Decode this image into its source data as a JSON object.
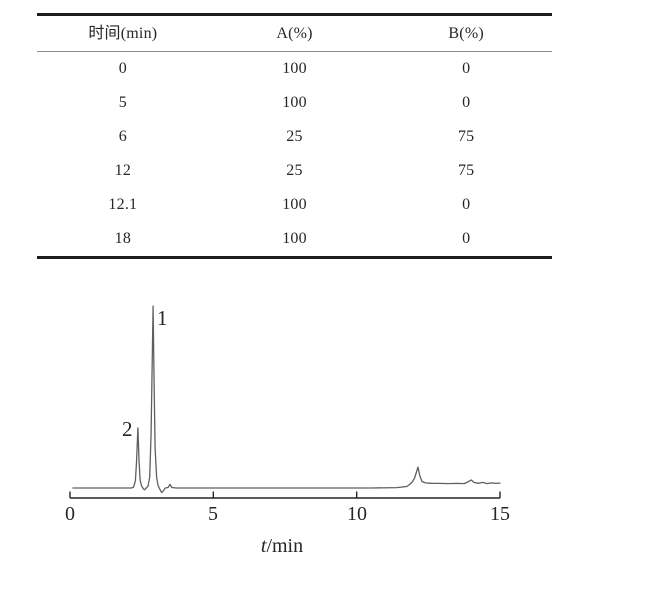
{
  "table": {
    "headers": [
      "时间(min)",
      "A(%)",
      "B(%)"
    ],
    "rows": [
      [
        "0",
        "100",
        "0"
      ],
      [
        "5",
        "100",
        "0"
      ],
      [
        "6",
        "25",
        "75"
      ],
      [
        "12",
        "25",
        "75"
      ],
      [
        "12.1",
        "100",
        "0"
      ],
      [
        "18",
        "100",
        "0"
      ]
    ]
  },
  "chart": {
    "xlabel_t": "t",
    "xlabel_unit": "/min",
    "peak_labels": [
      {
        "text": "1"
      },
      {
        "text": "2"
      }
    ]
  },
  "chart_data": {
    "type": "line",
    "title": "",
    "xlabel": "t/min",
    "ylabel": "",
    "xlim": [
      0,
      15
    ],
    "x_ticks": [
      0,
      5,
      10,
      15
    ],
    "x_tick_labels": [
      "0",
      "5",
      "10",
      "15"
    ],
    "grid": false,
    "legend": "none",
    "annotations": [
      {
        "text": "1",
        "t": 2.9,
        "height_rel": 100
      },
      {
        "text": "2",
        "t": 2.37,
        "height_rel": 33
      }
    ],
    "series": [
      {
        "name": "chromatogram-trace",
        "points": [
          [
            0.1,
            0
          ],
          [
            1.0,
            0
          ],
          [
            1.8,
            0
          ],
          [
            2.15,
            0
          ],
          [
            2.22,
            0.5
          ],
          [
            2.28,
            4
          ],
          [
            2.32,
            14
          ],
          [
            2.37,
            33
          ],
          [
            2.41,
            14
          ],
          [
            2.45,
            4
          ],
          [
            2.5,
            1
          ],
          [
            2.56,
            -0.5
          ],
          [
            2.6,
            -1
          ],
          [
            2.66,
            0
          ],
          [
            2.72,
            1
          ],
          [
            2.78,
            6
          ],
          [
            2.83,
            30
          ],
          [
            2.86,
            62
          ],
          [
            2.9,
            100
          ],
          [
            2.93,
            62
          ],
          [
            2.97,
            22
          ],
          [
            3.02,
            6
          ],
          [
            3.07,
            1.5
          ],
          [
            3.13,
            -0.5
          ],
          [
            3.2,
            -2.5
          ],
          [
            3.26,
            -1.5
          ],
          [
            3.32,
            0
          ],
          [
            3.42,
            0.3
          ],
          [
            3.49,
            2
          ],
          [
            3.55,
            0.3
          ],
          [
            3.7,
            0
          ],
          [
            5.0,
            0
          ],
          [
            7.0,
            0
          ],
          [
            9.0,
            0
          ],
          [
            10.5,
            0
          ],
          [
            11.4,
            0.2
          ],
          [
            11.75,
            0.8
          ],
          [
            11.85,
            2
          ],
          [
            11.95,
            3.5
          ],
          [
            12.02,
            5.5
          ],
          [
            12.08,
            8.5
          ],
          [
            12.14,
            11.5
          ],
          [
            12.2,
            7
          ],
          [
            12.28,
            3.5
          ],
          [
            12.4,
            2.8
          ],
          [
            12.6,
            2.6
          ],
          [
            12.9,
            2.5
          ],
          [
            13.2,
            2.4
          ],
          [
            13.5,
            2.5
          ],
          [
            13.75,
            2.4
          ],
          [
            13.9,
            3.5
          ],
          [
            14.0,
            4.4
          ],
          [
            14.1,
            3.0
          ],
          [
            14.25,
            2.6
          ],
          [
            14.4,
            3.1
          ],
          [
            14.55,
            2.4
          ],
          [
            14.7,
            2.8
          ],
          [
            14.85,
            2.5
          ],
          [
            15.0,
            2.7
          ]
        ]
      }
    ]
  },
  "colors": {
    "trace": "#5f5f5f",
    "axis": "#262626",
    "rule_heavy": "#1c1c1c",
    "rule_light": "#8f8f8f",
    "background": "#ffffff"
  }
}
